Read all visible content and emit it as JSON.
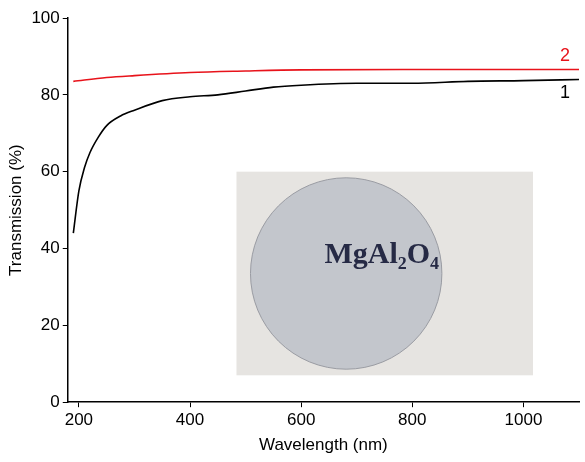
{
  "chart_data": {
    "type": "line",
    "x_label": "Wavelength (nm)",
    "y_label": "Transmission (%)",
    "xlim": [
      180,
      1100
    ],
    "xticks": [
      200,
      400,
      600,
      800,
      1000
    ],
    "ylim": [
      0,
      100
    ],
    "yticks": [
      0,
      20,
      40,
      60,
      80,
      100
    ],
    "grid": false,
    "annotations": [
      "MgAl₂O₄"
    ],
    "series": [
      {
        "name": "1",
        "color": "#000000",
        "x": [
          190,
          200,
          210,
          220,
          235,
          250,
          275,
          300,
          350,
          400,
          450,
          500,
          550,
          600,
          700,
          800,
          900,
          1000,
          1100
        ],
        "values": [
          44,
          55,
          61,
          65,
          69,
          72,
          74.5,
          76,
          78.5,
          79.5,
          80,
          81,
          82,
          82.5,
          83,
          83,
          83.5,
          83.7,
          84
        ]
      },
      {
        "name": "2",
        "color": "#e8131b",
        "x": [
          190,
          250,
          300,
          400,
          500,
          600,
          800,
          1000,
          1100
        ],
        "values": [
          83.5,
          84.5,
          85,
          85.8,
          86.2,
          86.5,
          86.6,
          86.6,
          86.6
        ]
      }
    ]
  }
}
